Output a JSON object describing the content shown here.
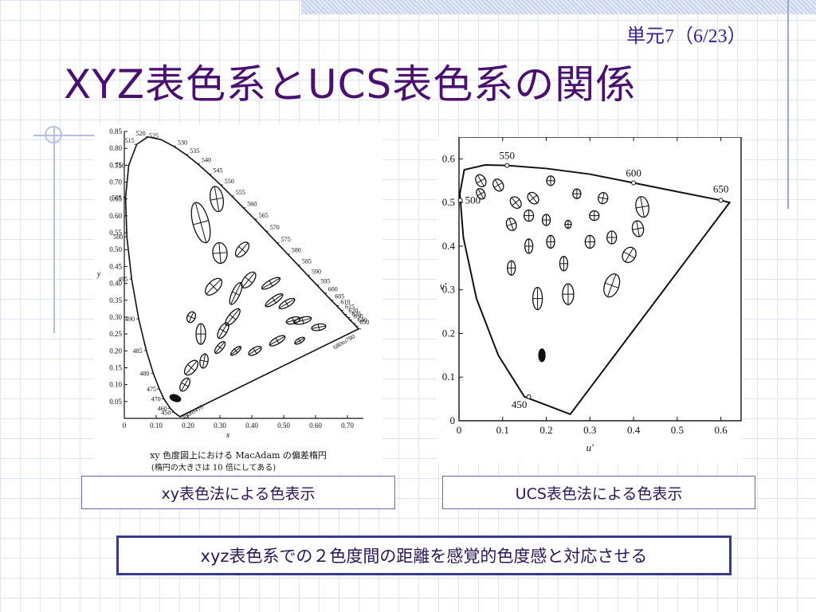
{
  "header": {
    "unit": "単元7（6/23）",
    "title": "XYZ表色系とUCS表色系の関係"
  },
  "captions": {
    "left": "xy表色法による色表示",
    "right": "UCS表色法による色表示"
  },
  "footer_note": "xyz表色系での２色度間の距離を感覚的色度感と対応させる",
  "figure_left_text": {
    "caption_line1": "xy 色度図上における MacAdam の偏差楕円",
    "caption_line2": "(楕円の大きさは 10 倍にしてある)",
    "x_ticks": [
      "0",
      "0.10",
      "0.20",
      "0.30",
      "0.40",
      "0.50",
      "0.60",
      "0.70"
    ],
    "y_ticks": [
      "0.05",
      "0.10",
      "0.15",
      "0.20",
      "0.25",
      "0.30",
      "0.35",
      "0.40",
      "0.45",
      "0.50",
      "0.55",
      "0.60",
      "0.65",
      "0.70",
      "0.75",
      "0.80",
      "0.85"
    ],
    "xlabel": "x",
    "ylabel": "y"
  },
  "figure_right_text": {
    "x_ticks": [
      "0",
      "0.1",
      "0.2",
      "0.3",
      "0.4",
      "0.5",
      "0.6"
    ],
    "y_ticks": [
      "0",
      "0.1",
      "0.2",
      "0.3",
      "0.4",
      "0.5",
      "0.6"
    ],
    "xlabel": "u′",
    "ylabel": "v′"
  },
  "chart_data": [
    {
      "type": "scatter",
      "xlabel": "x",
      "ylabel": "y",
      "xlim": [
        0,
        0.75
      ],
      "ylim": [
        0,
        0.85
      ],
      "locus_labels": [
        "380to410",
        "450",
        "460",
        "470",
        "475",
        "480",
        "485",
        "490",
        "495",
        "500",
        "505",
        "510",
        "515",
        "520",
        "525",
        "530",
        "535",
        "540",
        "545",
        "550",
        "555",
        "560",
        "565",
        "570",
        "575",
        "580",
        "585",
        "590",
        "595",
        "600",
        "605",
        "610",
        "615",
        "620",
        "625",
        "630",
        "640",
        "650",
        "680to780"
      ],
      "locus": [
        [
          0.174,
          0.005
        ],
        [
          0.156,
          0.018
        ],
        [
          0.144,
          0.03
        ],
        [
          0.124,
          0.058
        ],
        [
          0.11,
          0.087
        ],
        [
          0.091,
          0.133
        ],
        [
          0.069,
          0.201
        ],
        [
          0.045,
          0.295
        ],
        [
          0.023,
          0.413
        ],
        [
          0.008,
          0.538
        ],
        [
          0.004,
          0.655
        ],
        [
          0.014,
          0.75
        ],
        [
          0.039,
          0.812
        ],
        [
          0.074,
          0.834
        ],
        [
          0.115,
          0.826
        ],
        [
          0.155,
          0.806
        ],
        [
          0.193,
          0.782
        ],
        [
          0.23,
          0.754
        ],
        [
          0.266,
          0.724
        ],
        [
          0.302,
          0.692
        ],
        [
          0.337,
          0.659
        ],
        [
          0.373,
          0.624
        ],
        [
          0.409,
          0.59
        ],
        [
          0.444,
          0.555
        ],
        [
          0.479,
          0.52
        ],
        [
          0.512,
          0.487
        ],
        [
          0.545,
          0.454
        ],
        [
          0.575,
          0.424
        ],
        [
          0.603,
          0.396
        ],
        [
          0.627,
          0.372
        ],
        [
          0.648,
          0.351
        ],
        [
          0.666,
          0.334
        ],
        [
          0.68,
          0.32
        ],
        [
          0.691,
          0.308
        ],
        [
          0.701,
          0.299
        ],
        [
          0.707,
          0.292
        ],
        [
          0.719,
          0.281
        ],
        [
          0.726,
          0.274
        ],
        [
          0.735,
          0.265
        ]
      ],
      "ellipses_note": "MacAdam ellipses (magnified 10x)",
      "ellipses": [
        [
          0.16,
          0.06
        ],
        [
          0.19,
          0.1
        ],
        [
          0.21,
          0.15
        ],
        [
          0.21,
          0.3
        ],
        [
          0.28,
          0.39
        ],
        [
          0.24,
          0.58
        ],
        [
          0.29,
          0.65
        ],
        [
          0.3,
          0.49
        ],
        [
          0.37,
          0.5
        ],
        [
          0.35,
          0.37
        ],
        [
          0.39,
          0.41
        ],
        [
          0.46,
          0.4
        ],
        [
          0.47,
          0.35
        ],
        [
          0.51,
          0.34
        ],
        [
          0.56,
          0.29
        ],
        [
          0.24,
          0.25
        ],
        [
          0.31,
          0.26
        ],
        [
          0.34,
          0.3
        ],
        [
          0.25,
          0.17
        ],
        [
          0.3,
          0.21
        ],
        [
          0.35,
          0.2
        ],
        [
          0.41,
          0.2
        ],
        [
          0.48,
          0.23
        ],
        [
          0.53,
          0.29
        ],
        [
          0.55,
          0.23
        ],
        [
          0.61,
          0.27
        ]
      ]
    },
    {
      "type": "scatter",
      "xlabel": "u′",
      "ylabel": "v′",
      "xlim": [
        0,
        0.65
      ],
      "ylim": [
        0,
        0.65
      ],
      "locus_labels": [
        "450",
        "500",
        "550",
        "600",
        "650"
      ],
      "locus": [
        [
          0.255,
          0.015
        ],
        [
          0.15,
          0.055
        ],
        [
          0.09,
          0.15
        ],
        [
          0.04,
          0.28
        ],
        [
          0.01,
          0.42
        ],
        [
          0.002,
          0.52
        ],
        [
          0.012,
          0.575
        ],
        [
          0.06,
          0.586
        ],
        [
          0.11,
          0.585
        ],
        [
          0.2,
          0.578
        ],
        [
          0.3,
          0.565
        ],
        [
          0.4,
          0.545
        ],
        [
          0.5,
          0.525
        ],
        [
          0.6,
          0.505
        ],
        [
          0.62,
          0.5
        ]
      ],
      "locus_marks": [
        [
          "450",
          0.16,
          0.055
        ],
        [
          "500",
          0.003,
          0.505
        ],
        [
          "550",
          0.11,
          0.585
        ],
        [
          "600",
          0.4,
          0.545
        ],
        [
          "650",
          0.6,
          0.505
        ]
      ],
      "ellipses": [
        [
          0.05,
          0.55
        ],
        [
          0.09,
          0.54
        ],
        [
          0.13,
          0.5
        ],
        [
          0.17,
          0.51
        ],
        [
          0.21,
          0.55
        ],
        [
          0.27,
          0.52
        ],
        [
          0.33,
          0.51
        ],
        [
          0.42,
          0.49
        ],
        [
          0.05,
          0.52
        ],
        [
          0.12,
          0.45
        ],
        [
          0.16,
          0.47
        ],
        [
          0.2,
          0.46
        ],
        [
          0.25,
          0.45
        ],
        [
          0.31,
          0.47
        ],
        [
          0.41,
          0.44
        ],
        [
          0.16,
          0.4
        ],
        [
          0.21,
          0.41
        ],
        [
          0.24,
          0.36
        ],
        [
          0.3,
          0.41
        ],
        [
          0.35,
          0.42
        ],
        [
          0.39,
          0.38
        ],
        [
          0.12,
          0.35
        ],
        [
          0.18,
          0.28
        ],
        [
          0.25,
          0.29
        ],
        [
          0.35,
          0.31
        ],
        [
          0.19,
          0.15
        ]
      ]
    }
  ]
}
